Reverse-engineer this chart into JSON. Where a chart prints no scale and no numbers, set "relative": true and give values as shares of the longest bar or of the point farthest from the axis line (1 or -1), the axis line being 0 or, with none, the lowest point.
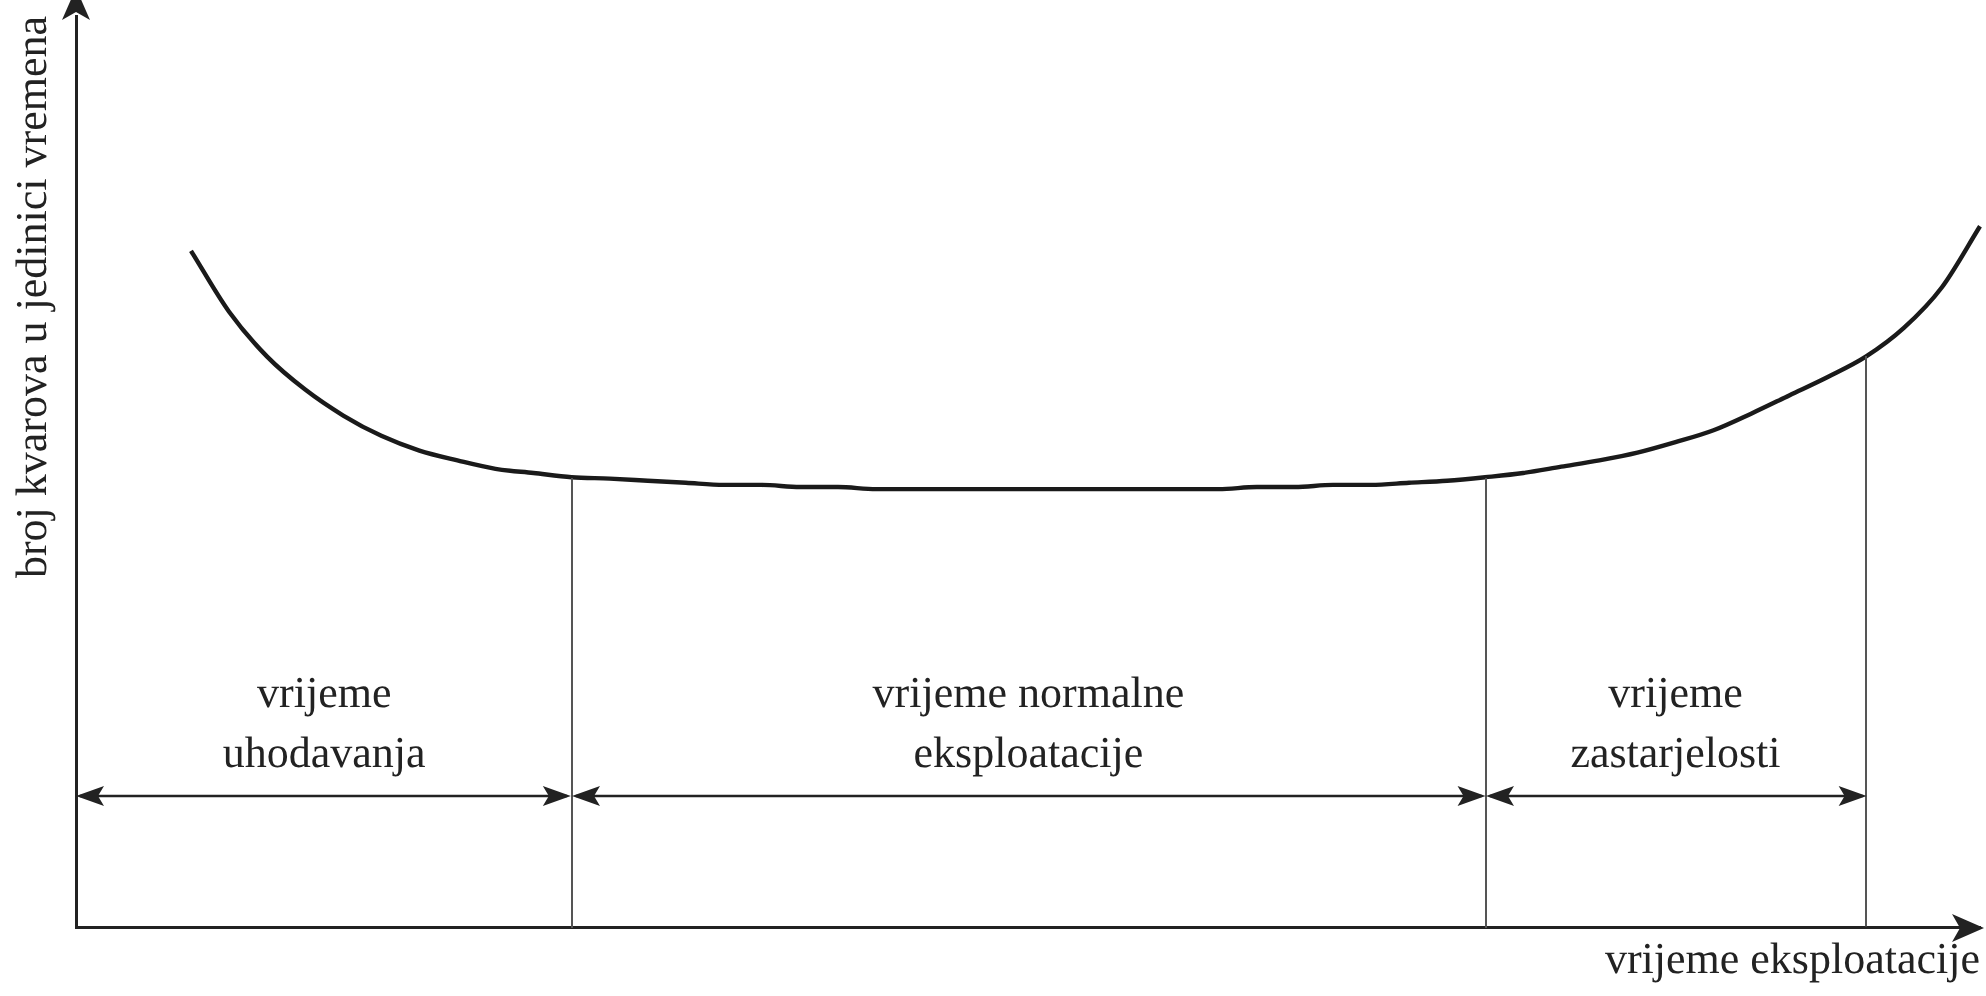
{
  "chart_data": {
    "type": "line",
    "relative": true,
    "xlabel": "vrijeme eksploatacije",
    "ylabel": "broj kvarova u jedinici vremena",
    "categories": [
      null,
      null,
      null,
      null,
      null,
      null,
      null,
      null,
      null,
      null,
      null,
      null,
      null,
      null,
      null,
      null,
      null,
      null,
      null,
      null,
      null,
      null,
      null,
      null,
      null,
      null,
      null,
      null,
      null,
      null,
      null,
      null,
      null,
      null,
      null,
      null,
      null,
      null,
      null,
      null,
      null,
      null,
      null,
      null,
      null,
      null,
      null,
      null,
      null,
      null,
      null
    ],
    "series": [
      {
        "color": "#1a1a1a",
        "values": [
          null,
          null,
          null,
          0.965,
          0.878,
          0.814,
          0.767,
          0.73,
          0.701,
          0.68,
          0.666,
          0.654,
          0.648,
          0.642,
          0.64,
          0.637,
          0.634,
          0.631,
          0.631,
          0.628,
          0.628,
          0.625,
          0.625,
          0.625,
          0.625,
          0.625,
          0.625,
          0.625,
          0.625,
          0.625,
          0.625,
          0.628,
          0.628,
          0.631,
          0.631,
          0.634,
          0.637,
          0.642,
          0.648,
          0.657,
          0.666,
          0.677,
          0.692,
          0.709,
          0.733,
          0.759,
          0.785,
          0.814,
          0.855,
          0.913,
          1
        ]
      }
    ],
    "annotations": [
      "vrijeme uhodavanja",
      "vrijeme normalne eksploatacije",
      "vrijeme zastarjelosti"
    ],
    "legend": false,
    "grid": false,
    "marker": "none",
    "line_style": "solid"
  }
}
